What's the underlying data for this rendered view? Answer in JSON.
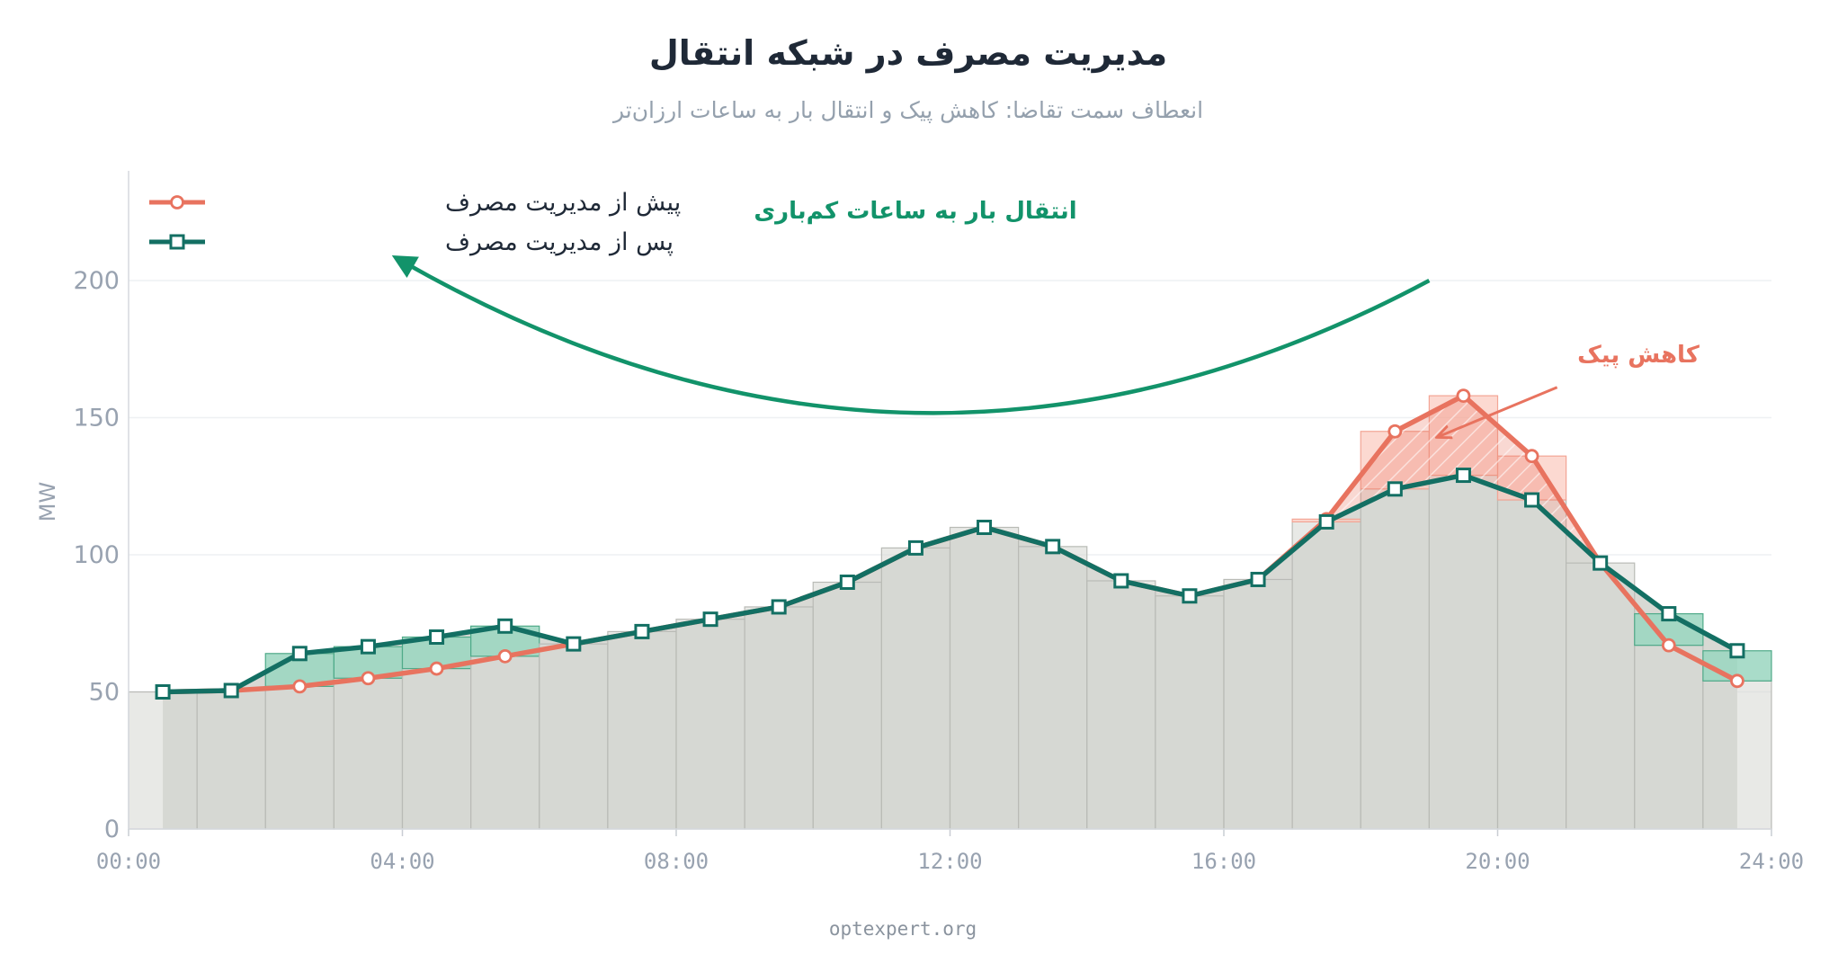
{
  "title": "مدیریت مصرف در شبکه انتقال",
  "subtitle": "انعطاف سمت تقاضا: کاهش پیک و انتقال بار به ساعات ارزان‌تر",
  "footer": "optexpert.org",
  "colors": {
    "before": "#e8735f",
    "after": "#136f63",
    "base_fill": "#d6d7d2",
    "increase_fill": "#9ad6c0",
    "decrease_fill": "#fbc9bd",
    "shift_arrow": "#12936a",
    "peak_annotation": "#e8735f"
  },
  "chart_data": {
    "type": "line",
    "title": "مدیریت مصرف در شبکه انتقال",
    "subtitle": "انعطاف سمت تقاضا: کاهش پیک و انتقال بار به ساعات ارزان‌تر",
    "xlabel": "",
    "ylabel": "MW",
    "xlim": [
      "00:00",
      "24:00"
    ],
    "ylim": [
      0,
      240
    ],
    "x_ticks": [
      "00:00",
      "04:00",
      "08:00",
      "12:00",
      "16:00",
      "20:00",
      "24:00"
    ],
    "y_ticks": [
      0,
      50,
      100,
      150,
      200
    ],
    "grid": true,
    "legend_position": "top-left",
    "x": [
      "00:30",
      "01:30",
      "02:30",
      "03:30",
      "04:30",
      "05:30",
      "06:30",
      "07:30",
      "08:30",
      "09:30",
      "10:30",
      "11:30",
      "12:30",
      "13:30",
      "14:30",
      "15:30",
      "16:30",
      "17:30",
      "18:30",
      "19:30",
      "20:30",
      "21:30",
      "22:30",
      "23:30"
    ],
    "series": [
      {
        "name": "پیش از مدیریت مصرف",
        "marker": "circle",
        "values": [
          50,
          50.5,
          52,
          55,
          58.5,
          63,
          67.5,
          72,
          76.5,
          81,
          90,
          102.5,
          110,
          103,
          90.5,
          85,
          91,
          113,
          145,
          158,
          136,
          97,
          67,
          54
        ]
      },
      {
        "name": "پس از مدیریت مصرف",
        "marker": "square",
        "values": [
          50,
          50.5,
          64,
          66.5,
          70,
          74,
          67.5,
          72,
          76.5,
          81,
          90,
          102.5,
          110,
          103,
          90.5,
          85,
          91,
          112,
          124,
          129,
          120,
          97,
          78.5,
          65
        ]
      }
    ],
    "annotations": [
      {
        "text": "انتقال بار به ساعات کم‌باری",
        "type": "curved-arrow",
        "from": {
          "x": "19:00",
          "y": 200
        },
        "to": {
          "x": "04:00",
          "y": 207
        }
      },
      {
        "text": "کاهش پیک",
        "type": "arrow",
        "from": {
          "x": "21:00",
          "y": 165
        },
        "to": {
          "x": "19:00",
          "y": 145
        }
      }
    ]
  }
}
